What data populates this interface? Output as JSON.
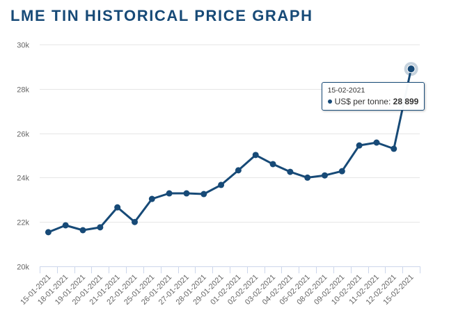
{
  "page": {
    "title": "LME TIN HISTORICAL PRICE GRAPH"
  },
  "colors": {
    "title": "#174a77",
    "series": "#174a77",
    "grid": "#e6e6e6",
    "axis": "#ccd6eb",
    "tick_label": "#666666"
  },
  "tooltip": {
    "date": "15-02-2021",
    "series_label": "US$ per tonne: ",
    "value_text": "28 899"
  },
  "chart_data": {
    "type": "line",
    "title": "LME TIN HISTORICAL PRICE GRAPH",
    "xlabel": "",
    "ylabel": "",
    "ylim": [
      20000,
      30000
    ],
    "yticks": [
      20000,
      22000,
      24000,
      26000,
      28000,
      30000
    ],
    "ytick_labels": [
      "20k",
      "22k",
      "24k",
      "26k",
      "28k",
      "30k"
    ],
    "grid": true,
    "legend": "none",
    "categories": [
      "15-01-2021",
      "18-01-2021",
      "19-01-2021",
      "20-01-2021",
      "21-01-2021",
      "22-01-2021",
      "25-01-2021",
      "26-01-2021",
      "27-01-2021",
      "28-01-2021",
      "29-01-2021",
      "01-02-2021",
      "02-02-2021",
      "03-02-2021",
      "04-02-2021",
      "05-02-2021",
      "08-02-2021",
      "09-02-2021",
      "10-02-2021",
      "11-02-2021",
      "12-02-2021",
      "15-02-2021"
    ],
    "series": [
      {
        "name": "US$ per tonne",
        "values": [
          21540,
          21850,
          21630,
          21760,
          22660,
          22000,
          23040,
          23290,
          23290,
          23260,
          23670,
          24330,
          25020,
          24610,
          24260,
          24000,
          24100,
          24290,
          25450,
          25580,
          25300,
          28899
        ]
      }
    ],
    "highlighted_point": {
      "category": "15-02-2021",
      "value": 28899
    }
  }
}
